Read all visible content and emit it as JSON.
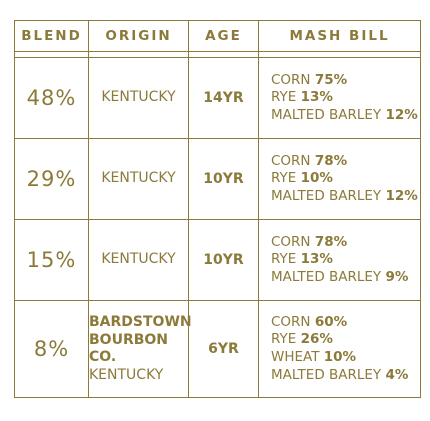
{
  "headers": [
    "BLEND",
    "ORIGIN",
    "AGE",
    "MASH BILL"
  ],
  "rows": [
    {
      "blend": "48%",
      "origin": {
        "brand": "",
        "location": "KENTUCKY"
      },
      "age": "14YR",
      "mash": [
        {
          "grain": "CORN ",
          "pct": "75%"
        },
        {
          "grain": "RYE ",
          "pct": "13%"
        },
        {
          "grain": "MALTED BARLEY ",
          "pct": "12%"
        }
      ]
    },
    {
      "blend": "29%",
      "origin": {
        "brand": "",
        "location": "KENTUCKY"
      },
      "age": "10YR",
      "mash": [
        {
          "grain": "CORN ",
          "pct": "78%"
        },
        {
          "grain": "RYE ",
          "pct": "10%"
        },
        {
          "grain": "MALTED BARLEY ",
          "pct": "12%"
        }
      ]
    },
    {
      "blend": "15%",
      "origin": {
        "brand": "",
        "location": "KENTUCKY"
      },
      "age": "10YR",
      "mash": [
        {
          "grain": "CORN ",
          "pct": "78%"
        },
        {
          "grain": "RYE ",
          "pct": "13%"
        },
        {
          "grain": "MALTED BARLEY ",
          "pct": "9%"
        }
      ]
    },
    {
      "blend": "8%",
      "origin": {
        "brand": "BARDSTOWN BOURBON CO.",
        "location": "KENTUCKY"
      },
      "age": "6YR",
      "mash": [
        {
          "grain": "CORN ",
          "pct": "60%"
        },
        {
          "grain": "RYE ",
          "pct": "26%"
        },
        {
          "grain": "WHEAT ",
          "pct": "10%"
        },
        {
          "grain": "MALTED BARLEY ",
          "pct": "4%"
        }
      ]
    }
  ]
}
